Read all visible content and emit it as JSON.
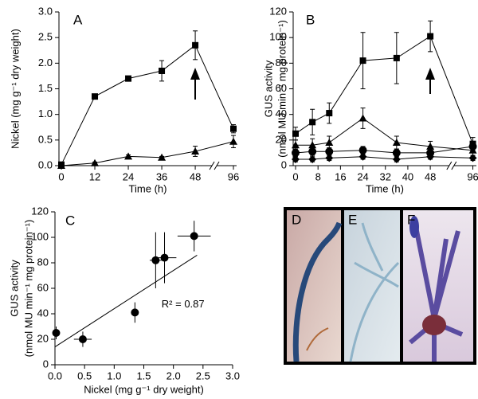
{
  "chart_data": [
    {
      "type": "line",
      "panel": "A",
      "ylabel": [
        "Nickel (mg g⁻¹ dry weight)"
      ],
      "xlabel": "Time (h)",
      "x": [
        0,
        12,
        24,
        36,
        48,
        96
      ],
      "xlim": [
        0,
        100
      ],
      "xticks": [
        0,
        12,
        24,
        36,
        48,
        96
      ],
      "axis_break": true,
      "ylim": [
        0,
        3
      ],
      "yticks": [
        {
          "value": 0,
          "label": "0.0"
        },
        {
          "value": 0.5,
          "label": "0.5"
        },
        {
          "value": 1,
          "label": "1.0"
        },
        {
          "value": 1.5,
          "label": "1.5"
        },
        {
          "value": 2,
          "label": "2.0"
        },
        {
          "value": 2.5,
          "label": "2.5"
        },
        {
          "value": 3,
          "label": "3.0"
        }
      ],
      "series": [
        {
          "marker": "square",
          "color": "#000000",
          "values": [
            0.02,
            1.35,
            1.7,
            1.85,
            2.35,
            0.72
          ],
          "errors": [
            0.02,
            0.03,
            0.04,
            0.2,
            0.28,
            0.08
          ]
        },
        {
          "marker": "triangle",
          "color": "#000000",
          "values": [
            0.0,
            0.05,
            0.18,
            0.16,
            0.28,
            0.47
          ],
          "errors": [
            0.01,
            0.02,
            0.03,
            0.02,
            0.1,
            0.12
          ]
        }
      ]
    },
    {
      "type": "line",
      "panel": "B",
      "ylabel": [
        "GUS activity",
        "(nmol MU min⁻¹ mg protein⁻¹)"
      ],
      "xlabel": "Time (h)",
      "x": [
        0,
        6,
        12,
        24,
        36,
        48,
        96
      ],
      "xlim": [
        0,
        100
      ],
      "xticks": [
        0,
        8,
        16,
        24,
        32,
        40,
        48,
        96
      ],
      "axis_break": true,
      "ylim": [
        0,
        120
      ],
      "yticks": [
        0,
        20,
        40,
        60,
        80,
        100,
        120
      ],
      "series": [
        {
          "marker": "square",
          "color": "#000000",
          "values": [
            25,
            34,
            41,
            82,
            84,
            101,
            17
          ],
          "errors": [
            5,
            10,
            8,
            22,
            20,
            12,
            5
          ]
        },
        {
          "marker": "triangle",
          "color": "#000000",
          "values": [
            16,
            16,
            18,
            37,
            18,
            15,
            12
          ],
          "errors": [
            4,
            5,
            5,
            8,
            5,
            4,
            4
          ]
        },
        {
          "marker": "circle",
          "color": "#000000",
          "values": [
            10,
            11,
            11,
            12,
            10,
            10,
            15
          ],
          "errors": [
            3,
            3,
            3,
            3,
            3,
            3,
            4
          ]
        },
        {
          "marker": "diamond",
          "color": "#000000",
          "values": [
            5,
            5,
            6,
            7,
            5,
            7,
            6
          ],
          "errors": [
            2,
            2,
            2,
            2,
            2,
            2,
            2
          ]
        }
      ]
    },
    {
      "type": "scatter",
      "panel": "C",
      "ylabel": [
        "GUS activity",
        "(nmol MU min⁻¹ mg protein⁻¹)"
      ],
      "xlabel": "Nickel (mg g⁻¹ dry weight)",
      "x": [
        0.02,
        0.47,
        1.35,
        1.7,
        1.85,
        2.35
      ],
      "values": [
        25,
        20,
        41,
        82,
        84,
        101
      ],
      "xerr": [
        0.02,
        0.15,
        0.05,
        0.1,
        0.2,
        0.28
      ],
      "yerr": [
        5,
        6,
        8,
        22,
        20,
        12
      ],
      "color": "#000000",
      "fit": {
        "intercept": 14,
        "slope": 30,
        "x": [
          0,
          2.4
        ]
      },
      "annotation": "R² = 0.87",
      "xlim": [
        0,
        3
      ],
      "xticks": [
        {
          "value": 0,
          "label": "0.0"
        },
        {
          "value": 0.5,
          "label": "0.5"
        },
        {
          "value": 1,
          "label": "1.0"
        },
        {
          "value": 1.5,
          "label": "1.5"
        },
        {
          "value": 2,
          "label": "2.0"
        },
        {
          "value": 2.5,
          "label": "2.5"
        },
        {
          "value": 3,
          "label": "3.0"
        }
      ],
      "ylim": [
        0,
        120
      ],
      "yticks": [
        0,
        20,
        40,
        60,
        80,
        100,
        120
      ]
    }
  ],
  "photos": [
    {
      "label": "D"
    },
    {
      "label": "E"
    },
    {
      "label": "F"
    }
  ]
}
